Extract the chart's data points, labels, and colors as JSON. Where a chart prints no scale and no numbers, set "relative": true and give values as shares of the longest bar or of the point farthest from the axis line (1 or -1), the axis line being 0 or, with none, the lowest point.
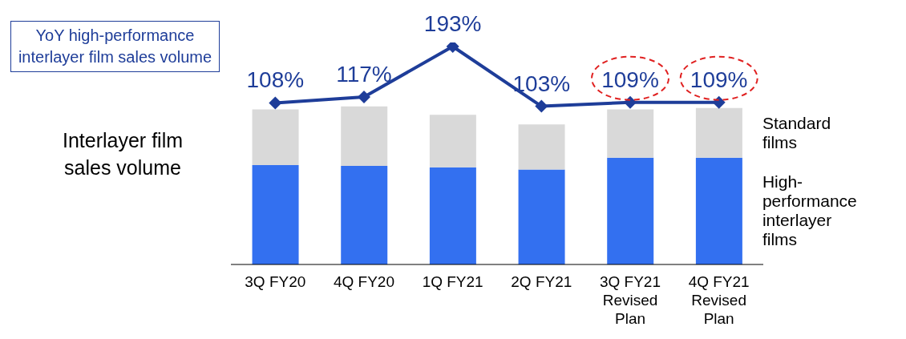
{
  "chart_data": [
    {
      "type": "bar",
      "stacked": true,
      "relative": true,
      "ylabel": "Interlayer film sales volume",
      "legend": false,
      "grid": false,
      "categories": [
        "3Q FY20",
        "4Q FY20",
        "1Q FY21",
        "2Q FY21",
        "3Q FY21 Revised Plan",
        "4Q FY21 Revised Plan"
      ],
      "series": [
        {
          "name": "High-performance interlayer films",
          "color": "#3370f0",
          "values": [
            0.629,
            0.624,
            0.614,
            0.6,
            0.676,
            0.676
          ]
        },
        {
          "name": "Standard films",
          "color": "#d9d9d9",
          "values": [
            0.352,
            0.376,
            0.333,
            0.286,
            0.305,
            0.314
          ]
        }
      ]
    },
    {
      "type": "line",
      "marker": "diamond",
      "legend": false,
      "grid": false,
      "tick_labels": false,
      "categories": [
        "3Q FY20",
        "4Q FY20",
        "1Q FY21",
        "2Q FY21",
        "3Q FY21 Revised Plan",
        "4Q FY21 Revised Plan"
      ],
      "series": [
        {
          "name": "YoY high-performance interlayer film sales volume",
          "color": "#1e3d99",
          "values": [
            108,
            117,
            193,
            103,
            109,
            109
          ],
          "value_labels": [
            "108%",
            "117%",
            "193%",
            "103%",
            "109%",
            "109%"
          ]
        }
      ]
    }
  ]
}
